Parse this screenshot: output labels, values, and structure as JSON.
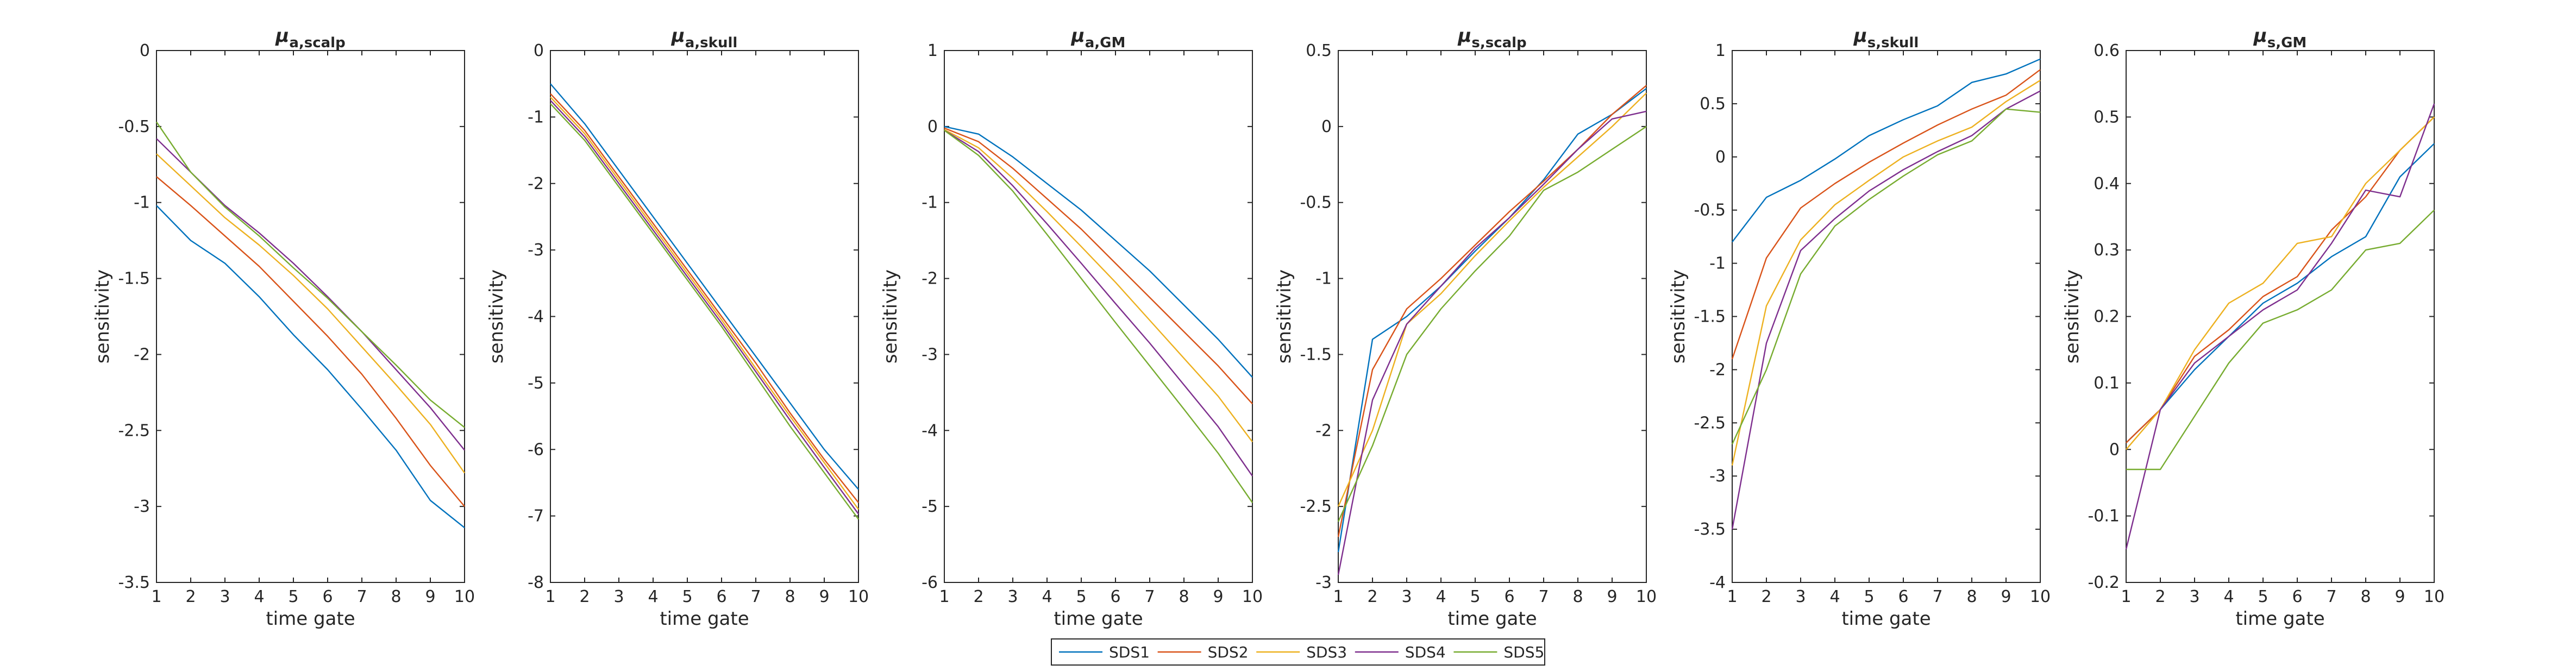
{
  "colors": [
    "#0072BD",
    "#D95319",
    "#EDB120",
    "#7E2F8E",
    "#77AC30"
  ],
  "legend": {
    "items": [
      "SDS1",
      "SDS2",
      "SDS3",
      "SDS4",
      "SDS5"
    ],
    "placement": "bottom-center"
  },
  "chart_data": [
    {
      "type": "line",
      "title": "μ",
      "title_subscript": "a,scalp",
      "xlabel": "time gate",
      "ylabel": "sensitivity",
      "xlim": [
        1,
        10
      ],
      "ylim": [
        -3.5,
        0
      ],
      "xticks": [
        1,
        2,
        3,
        4,
        5,
        6,
        7,
        8,
        9,
        10
      ],
      "yticks": [
        -3.5,
        -3,
        -2.5,
        -2,
        -1.5,
        -1,
        -0.5,
        0
      ],
      "ytick_labels": [
        "-3.5",
        "-3",
        "-2.5",
        "-2",
        "-1.5",
        "-1",
        "-0.5",
        "0"
      ],
      "x": [
        1,
        2,
        3,
        4,
        5,
        6,
        7,
        8,
        9,
        10
      ],
      "series": [
        {
          "name": "SDS1",
          "values": [
            -1.02,
            -1.25,
            -1.4,
            -1.62,
            -1.87,
            -2.1,
            -2.36,
            -2.63,
            -2.96,
            -3.14
          ]
        },
        {
          "name": "SDS2",
          "values": [
            -0.83,
            -1.02,
            -1.22,
            -1.42,
            -1.65,
            -1.88,
            -2.13,
            -2.42,
            -2.73,
            -3.0
          ]
        },
        {
          "name": "SDS3",
          "values": [
            -0.68,
            -0.89,
            -1.1,
            -1.28,
            -1.48,
            -1.7,
            -1.95,
            -2.2,
            -2.46,
            -2.78
          ]
        },
        {
          "name": "SDS4",
          "values": [
            -0.58,
            -0.8,
            -1.02,
            -1.2,
            -1.4,
            -1.62,
            -1.85,
            -2.1,
            -2.35,
            -2.63
          ]
        },
        {
          "name": "SDS5",
          "values": [
            -0.47,
            -0.8,
            -1.03,
            -1.22,
            -1.43,
            -1.63,
            -1.85,
            -2.07,
            -2.3,
            -2.48
          ]
        }
      ]
    },
    {
      "type": "line",
      "title": "μ",
      "title_subscript": "a,skull",
      "xlabel": "time gate",
      "ylabel": "sensitivity",
      "xlim": [
        1,
        10
      ],
      "ylim": [
        -8,
        0
      ],
      "xticks": [
        1,
        2,
        3,
        4,
        5,
        6,
        7,
        8,
        9,
        10
      ],
      "yticks": [
        -8,
        -7,
        -6,
        -5,
        -4,
        -3,
        -2,
        -1,
        0
      ],
      "ytick_labels": [
        "-8",
        "-7",
        "-6",
        "-5",
        "-4",
        "-3",
        "-2",
        "-1",
        "0"
      ],
      "x": [
        1,
        2,
        3,
        4,
        5,
        6,
        7,
        8,
        9,
        10
      ],
      "series": [
        {
          "name": "SDS1",
          "values": [
            -0.5,
            -1.1,
            -1.8,
            -2.5,
            -3.2,
            -3.9,
            -4.6,
            -5.3,
            -6.0,
            -6.6
          ]
        },
        {
          "name": "SDS2",
          "values": [
            -0.65,
            -1.2,
            -1.9,
            -2.6,
            -3.3,
            -4.0,
            -4.7,
            -5.45,
            -6.15,
            -6.8
          ]
        },
        {
          "name": "SDS3",
          "values": [
            -0.7,
            -1.25,
            -1.95,
            -2.65,
            -3.35,
            -4.05,
            -4.78,
            -5.5,
            -6.2,
            -6.9
          ]
        },
        {
          "name": "SDS4",
          "values": [
            -0.75,
            -1.3,
            -2.0,
            -2.7,
            -3.4,
            -4.1,
            -4.83,
            -5.56,
            -6.27,
            -6.97
          ]
        },
        {
          "name": "SDS5",
          "values": [
            -0.8,
            -1.35,
            -2.05,
            -2.75,
            -3.45,
            -4.15,
            -4.9,
            -5.65,
            -6.35,
            -7.05
          ]
        }
      ]
    },
    {
      "type": "line",
      "title": "μ",
      "title_subscript": "a,GM",
      "xlabel": "time gate",
      "ylabel": "sensitivity",
      "xlim": [
        1,
        10
      ],
      "ylim": [
        -6,
        1
      ],
      "xticks": [
        1,
        2,
        3,
        4,
        5,
        6,
        7,
        8,
        9,
        10
      ],
      "yticks": [
        -6,
        -5,
        -4,
        -3,
        -2,
        -1,
        0,
        1
      ],
      "ytick_labels": [
        "-6",
        "-5",
        "-4",
        "-3",
        "-2",
        "-1",
        "0",
        "1"
      ],
      "x": [
        1,
        2,
        3,
        4,
        5,
        6,
        7,
        8,
        9,
        10
      ],
      "series": [
        {
          "name": "SDS1",
          "values": [
            0.0,
            -0.1,
            -0.4,
            -0.75,
            -1.1,
            -1.5,
            -1.9,
            -2.35,
            -2.8,
            -3.3
          ]
        },
        {
          "name": "SDS2",
          "values": [
            -0.02,
            -0.2,
            -0.55,
            -0.95,
            -1.35,
            -1.8,
            -2.25,
            -2.7,
            -3.15,
            -3.65
          ]
        },
        {
          "name": "SDS3",
          "values": [
            -0.04,
            -0.28,
            -0.68,
            -1.12,
            -1.58,
            -2.05,
            -2.55,
            -3.05,
            -3.55,
            -4.15
          ]
        },
        {
          "name": "SDS4",
          "values": [
            -0.05,
            -0.33,
            -0.78,
            -1.28,
            -1.8,
            -2.33,
            -2.85,
            -3.4,
            -3.95,
            -4.6
          ]
        },
        {
          "name": "SDS5",
          "values": [
            -0.05,
            -0.38,
            -0.85,
            -1.42,
            -2.0,
            -2.58,
            -3.15,
            -3.72,
            -4.3,
            -4.95
          ]
        }
      ]
    },
    {
      "type": "line",
      "title": "μ",
      "title_subscript": "s,scalp",
      "xlabel": "time gate",
      "ylabel": "sensitivity",
      "xlim": [
        1,
        10
      ],
      "ylim": [
        -3,
        0.5
      ],
      "xticks": [
        1,
        2,
        3,
        4,
        5,
        6,
        7,
        8,
        9,
        10
      ],
      "yticks": [
        -3,
        -2.5,
        -2,
        -1.5,
        -1,
        -0.5,
        0,
        0.5
      ],
      "ytick_labels": [
        "-3",
        "-2.5",
        "-2",
        "-1.5",
        "-1",
        "-0.5",
        "0",
        "0.5"
      ],
      "x": [
        1,
        2,
        3,
        4,
        5,
        6,
        7,
        8,
        9,
        10
      ],
      "series": [
        {
          "name": "SDS1",
          "values": [
            -2.8,
            -1.4,
            -1.25,
            -1.05,
            -0.82,
            -0.6,
            -0.35,
            -0.05,
            0.08,
            0.25
          ]
        },
        {
          "name": "SDS2",
          "values": [
            -2.7,
            -1.6,
            -1.2,
            -1.0,
            -0.78,
            -0.56,
            -0.36,
            -0.15,
            0.08,
            0.27
          ]
        },
        {
          "name": "SDS3",
          "values": [
            -2.5,
            -2.0,
            -1.3,
            -1.1,
            -0.85,
            -0.62,
            -0.4,
            -0.2,
            0.0,
            0.22
          ]
        },
        {
          "name": "SDS4",
          "values": [
            -2.95,
            -1.8,
            -1.3,
            -1.05,
            -0.8,
            -0.6,
            -0.38,
            -0.15,
            0.05,
            0.1
          ]
        },
        {
          "name": "SDS5",
          "values": [
            -2.6,
            -2.1,
            -1.5,
            -1.2,
            -0.95,
            -0.72,
            -0.42,
            -0.3,
            -0.15,
            0.0
          ]
        }
      ]
    },
    {
      "type": "line",
      "title": "μ",
      "title_subscript": "s,skull",
      "xlabel": "time gate",
      "ylabel": "sensitivity",
      "xlim": [
        1,
        10
      ],
      "ylim": [
        -4,
        1
      ],
      "xticks": [
        1,
        2,
        3,
        4,
        5,
        6,
        7,
        8,
        9,
        10
      ],
      "yticks": [
        -4,
        -3.5,
        -3,
        -2.5,
        -2,
        -1.5,
        -1,
        -0.5,
        0,
        0.5,
        1
      ],
      "ytick_labels": [
        "-4",
        "-3.5",
        "-3",
        "-2.5",
        "-2",
        "-1.5",
        "-1",
        "-0.5",
        "0",
        "0.5",
        "1"
      ],
      "x": [
        1,
        2,
        3,
        4,
        5,
        6,
        7,
        8,
        9,
        10
      ],
      "series": [
        {
          "name": "SDS1",
          "values": [
            -0.8,
            -0.38,
            -0.22,
            -0.02,
            0.2,
            0.35,
            0.48,
            0.7,
            0.78,
            0.92
          ]
        },
        {
          "name": "SDS2",
          "values": [
            -1.9,
            -0.95,
            -0.48,
            -0.25,
            -0.05,
            0.13,
            0.3,
            0.45,
            0.58,
            0.82
          ]
        },
        {
          "name": "SDS3",
          "values": [
            -2.9,
            -1.4,
            -0.78,
            -0.45,
            -0.22,
            0.0,
            0.15,
            0.28,
            0.52,
            0.72
          ]
        },
        {
          "name": "SDS4",
          "values": [
            -3.5,
            -1.75,
            -0.88,
            -0.58,
            -0.32,
            -0.12,
            0.05,
            0.2,
            0.45,
            0.62
          ]
        },
        {
          "name": "SDS5",
          "values": [
            -2.7,
            -2.0,
            -1.1,
            -0.65,
            -0.4,
            -0.18,
            0.02,
            0.15,
            0.45,
            0.42
          ]
        }
      ]
    },
    {
      "type": "line",
      "title": "μ",
      "title_subscript": "s,GM",
      "xlabel": "time gate",
      "ylabel": "sensitivity",
      "xlim": [
        1,
        10
      ],
      "ylim": [
        -0.2,
        0.6
      ],
      "xticks": [
        1,
        2,
        3,
        4,
        5,
        6,
        7,
        8,
        9,
        10
      ],
      "yticks": [
        -0.2,
        -0.1,
        0,
        0.1,
        0.2,
        0.3,
        0.4,
        0.5,
        0.6
      ],
      "ytick_labels": [
        "-0.2",
        "-0.1",
        "0",
        "0.1",
        "0.2",
        "0.3",
        "0.4",
        "0.5",
        "0.6"
      ],
      "x": [
        1,
        2,
        3,
        4,
        5,
        6,
        7,
        8,
        9,
        10
      ],
      "series": [
        {
          "name": "SDS1",
          "values": [
            0.01,
            0.06,
            0.12,
            0.17,
            0.22,
            0.25,
            0.29,
            0.32,
            0.41,
            0.46
          ]
        },
        {
          "name": "SDS2",
          "values": [
            0.01,
            0.06,
            0.14,
            0.18,
            0.23,
            0.26,
            0.33,
            0.38,
            0.45,
            0.5
          ]
        },
        {
          "name": "SDS3",
          "values": [
            0.0,
            0.06,
            0.15,
            0.22,
            0.25,
            0.31,
            0.32,
            0.4,
            0.45,
            0.5
          ]
        },
        {
          "name": "SDS4",
          "values": [
            -0.15,
            0.06,
            0.13,
            0.17,
            0.21,
            0.24,
            0.31,
            0.39,
            0.38,
            0.52
          ]
        },
        {
          "name": "SDS5",
          "values": [
            -0.03,
            -0.03,
            0.05,
            0.13,
            0.19,
            0.21,
            0.24,
            0.3,
            0.31,
            0.36
          ]
        }
      ]
    }
  ]
}
